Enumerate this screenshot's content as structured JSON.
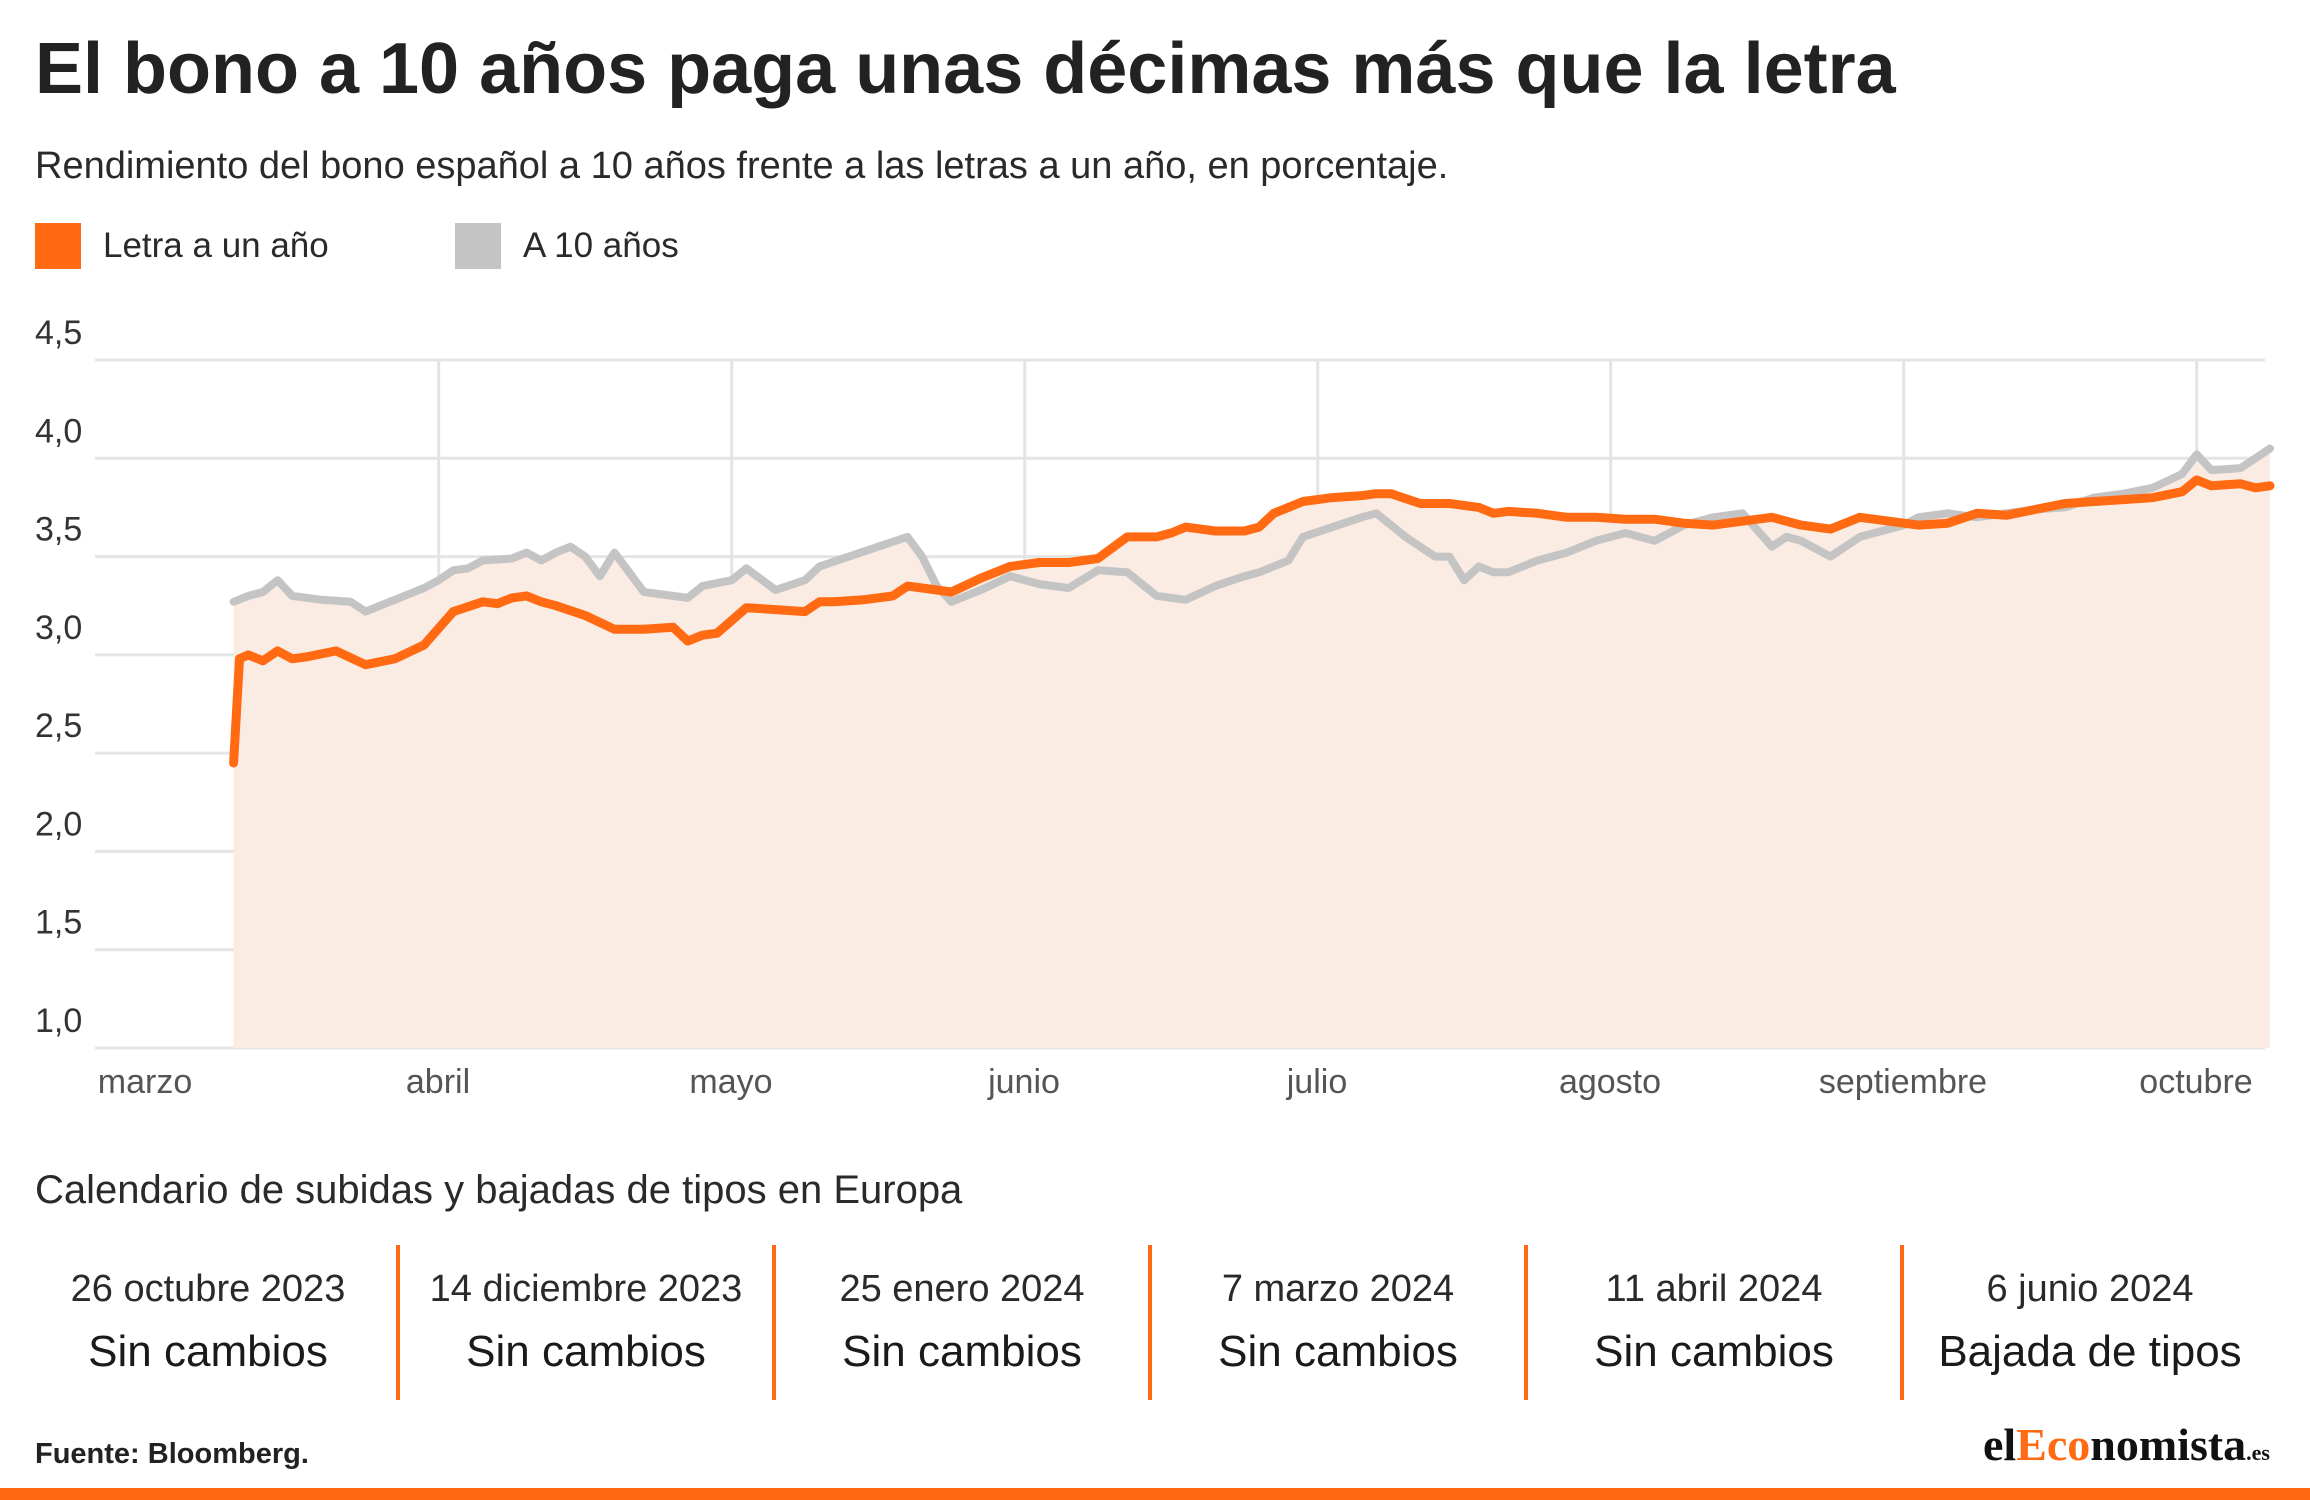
{
  "title": "El bono a 10 años paga unas décimas más que la letra",
  "subtitle": "Rendimiento del bono español a 10 años frente a las letras a un año, en porcentaje.",
  "colors": {
    "letra": "#ff6a13",
    "bono": "#c4c4c4",
    "fill": "#fbece3",
    "grid": "#e4e4e4",
    "accent": "#ff6a13"
  },
  "chart_data": {
    "type": "line",
    "xlabel": "",
    "ylabel": "",
    "ylim": [
      1.0,
      4.5
    ],
    "yticks": [
      1.0,
      1.5,
      2.0,
      2.5,
      3.0,
      3.5,
      4.0,
      4.5
    ],
    "ytick_labels": [
      "1,0",
      "1,5",
      "2,0",
      "2,5",
      "3,0",
      "3,5",
      "4,0",
      "4,5"
    ],
    "xlim": [
      0,
      7.6
    ],
    "month_labels": [
      "marzo",
      "abril",
      "mayo",
      "junio",
      "julio",
      "agosto",
      "septiembre",
      "octubre"
    ],
    "grid": true,
    "legend_position": "top-left",
    "series": [
      {
        "name": "Letra a un año",
        "role": "letra",
        "x": [
          0.2,
          0.22,
          0.25,
          0.3,
          0.35,
          0.4,
          0.45,
          0.55,
          0.65,
          0.75,
          0.85,
          0.95,
          1.05,
          1.1,
          1.15,
          1.2,
          1.25,
          1.3,
          1.4,
          1.5,
          1.6,
          1.7,
          1.75,
          1.8,
          1.85,
          1.95,
          2.05,
          2.15,
          2.2,
          2.25,
          2.35,
          2.45,
          2.5,
          2.55,
          2.65,
          2.75,
          2.85,
          2.95,
          3.05,
          3.15,
          3.25,
          3.35,
          3.4,
          3.45,
          3.55,
          3.65,
          3.7,
          3.75,
          3.85,
          3.95,
          4.05,
          4.1,
          4.15,
          4.25,
          4.35,
          4.45,
          4.5,
          4.55,
          4.65,
          4.75,
          4.85,
          4.95,
          5.05,
          5.15,
          5.25,
          5.35,
          5.45,
          5.55,
          5.65,
          5.75,
          5.85,
          5.95,
          6.05,
          6.15,
          6.25,
          6.35,
          6.45,
          6.55,
          6.65,
          6.75,
          6.85,
          6.9,
          6.95,
          7.05,
          7.1,
          7.15
        ],
        "y": [
          2.45,
          2.98,
          3.0,
          2.97,
          3.02,
          2.98,
          2.99,
          3.02,
          2.95,
          2.98,
          3.05,
          3.22,
          3.27,
          3.26,
          3.29,
          3.3,
          3.27,
          3.25,
          3.2,
          3.13,
          3.13,
          3.14,
          3.07,
          3.1,
          3.11,
          3.24,
          3.23,
          3.22,
          3.27,
          3.27,
          3.28,
          3.3,
          3.35,
          3.34,
          3.32,
          3.39,
          3.45,
          3.47,
          3.47,
          3.49,
          3.6,
          3.6,
          3.62,
          3.65,
          3.63,
          3.63,
          3.65,
          3.72,
          3.78,
          3.8,
          3.81,
          3.82,
          3.82,
          3.77,
          3.77,
          3.75,
          3.72,
          3.73,
          3.72,
          3.7,
          3.7,
          3.69,
          3.69,
          3.67,
          3.66,
          3.68,
          3.7,
          3.66,
          3.64,
          3.7,
          3.68,
          3.66,
          3.67,
          3.72,
          3.71,
          3.74,
          3.77,
          3.78,
          3.79,
          3.8,
          3.83,
          3.89,
          3.86,
          3.87,
          3.85,
          3.86
        ]
      },
      {
        "name": "A 10 años",
        "role": "bono",
        "x": [
          0.2,
          0.25,
          0.3,
          0.35,
          0.4,
          0.5,
          0.6,
          0.65,
          0.75,
          0.85,
          0.9,
          0.95,
          1.0,
          1.05,
          1.15,
          1.2,
          1.25,
          1.3,
          1.35,
          1.4,
          1.45,
          1.5,
          1.6,
          1.7,
          1.75,
          1.8,
          1.9,
          1.95,
          2.05,
          2.15,
          2.2,
          2.3,
          2.4,
          2.5,
          2.55,
          2.6,
          2.65,
          2.75,
          2.85,
          2.95,
          3.05,
          3.15,
          3.25,
          3.35,
          3.45,
          3.55,
          3.65,
          3.7,
          3.8,
          3.85,
          3.95,
          4.05,
          4.1,
          4.2,
          4.3,
          4.35,
          4.4,
          4.45,
          4.5,
          4.55,
          4.65,
          4.75,
          4.85,
          4.95,
          5.05,
          5.15,
          5.25,
          5.35,
          5.45,
          5.5,
          5.55,
          5.65,
          5.75,
          5.8,
          5.9,
          5.95,
          6.05,
          6.15,
          6.25,
          6.35,
          6.45,
          6.55,
          6.65,
          6.75,
          6.85,
          6.9,
          6.95,
          7.05,
          7.1,
          7.15
        ],
        "y": [
          3.27,
          3.3,
          3.32,
          3.38,
          3.3,
          3.28,
          3.27,
          3.22,
          3.28,
          3.34,
          3.38,
          3.43,
          3.44,
          3.48,
          3.49,
          3.52,
          3.48,
          3.52,
          3.55,
          3.5,
          3.4,
          3.52,
          3.32,
          3.3,
          3.29,
          3.35,
          3.38,
          3.44,
          3.33,
          3.38,
          3.45,
          3.5,
          3.55,
          3.6,
          3.5,
          3.35,
          3.27,
          3.33,
          3.4,
          3.36,
          3.34,
          3.43,
          3.42,
          3.3,
          3.28,
          3.35,
          3.4,
          3.42,
          3.48,
          3.6,
          3.65,
          3.7,
          3.72,
          3.6,
          3.5,
          3.5,
          3.38,
          3.45,
          3.42,
          3.42,
          3.48,
          3.52,
          3.58,
          3.62,
          3.58,
          3.66,
          3.7,
          3.72,
          3.55,
          3.6,
          3.58,
          3.5,
          3.6,
          3.62,
          3.66,
          3.7,
          3.72,
          3.7,
          3.72,
          3.74,
          3.75,
          3.8,
          3.82,
          3.85,
          3.92,
          4.02,
          3.94,
          3.95,
          4.0,
          4.05
        ]
      }
    ]
  },
  "calendar": {
    "title": "Calendario de subidas y bajadas de tipos en Europa",
    "entries": [
      {
        "date": "26 octubre 2023",
        "status": "Sin cambios"
      },
      {
        "date": "14 diciembre 2023",
        "status": "Sin cambios"
      },
      {
        "date": "25 enero 2024",
        "status": "Sin cambios"
      },
      {
        "date": "7 marzo 2024",
        "status": "Sin cambios"
      },
      {
        "date": "11 abril 2024",
        "status": "Sin cambios"
      },
      {
        "date": "6 junio 2024",
        "status": "Bajada de tipos"
      }
    ]
  },
  "footer": {
    "source": "Fuente: Bloomberg.",
    "logo_prefix": "el",
    "logo_accent": "Eco",
    "logo_suffix": "nomista",
    "logo_tld": ".es"
  }
}
